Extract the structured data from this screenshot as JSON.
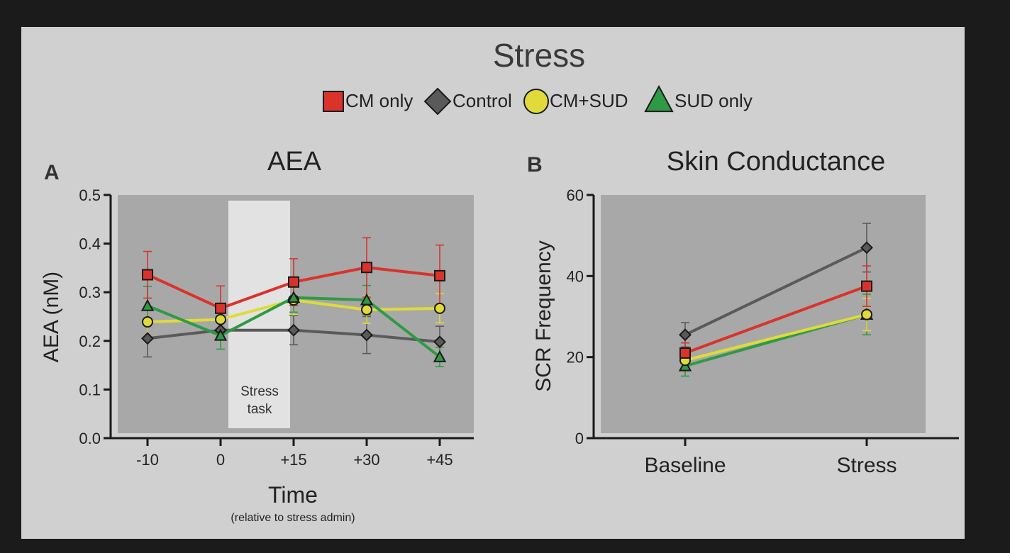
{
  "figure": {
    "title": "Stress",
    "legend": [
      {
        "name": "CM only",
        "color": "#d9332b",
        "marker": "square"
      },
      {
        "name": "Control",
        "color": "#5a5a5a",
        "marker": "diamond"
      },
      {
        "name": "CM+SUD",
        "color": "#e0da3a",
        "marker": "circle"
      },
      {
        "name": "SUD only",
        "color": "#2f9a45",
        "marker": "triangle"
      }
    ],
    "colors": {
      "frame": "#1b1b1b",
      "panel_bg": "#d0d0d0",
      "plot_bg": "#a8a8a8",
      "stress_band": "#e2e2e2",
      "axis": "#1a1a1a",
      "text": "#333333"
    }
  },
  "chart_data": [
    {
      "type": "line",
      "panel_letter": "A",
      "title": "AEA",
      "ylabel": "AEA (nM)",
      "xlabel": "Time",
      "xlabel_sub": "(relative to stress admin)",
      "categories": [
        "-10",
        "0",
        "+15",
        "+30",
        "+45"
      ],
      "ylim": [
        0.0,
        0.5
      ],
      "yticks": [
        "0.0",
        "0.1",
        "0.2",
        "0.3",
        "0.4",
        "0.5"
      ],
      "annotation": {
        "line1": "Stress",
        "line2": "task"
      },
      "grid": false,
      "series": [
        {
          "name": "CM only",
          "values": [
            0.336,
            0.267,
            0.321,
            0.351,
            0.334
          ],
          "errors": [
            0.048,
            0.046,
            0.048,
            0.061,
            0.063
          ]
        },
        {
          "name": "Control",
          "values": [
            0.205,
            0.222,
            0.222,
            0.212,
            0.198
          ],
          "errors": [
            0.038,
            0.02,
            0.03,
            0.038,
            0.032
          ]
        },
        {
          "name": "CM+SUD",
          "values": [
            0.239,
            0.244,
            0.284,
            0.264,
            0.267
          ],
          "errors": [
            0.03,
            0.025,
            0.03,
            0.028,
            0.03
          ]
        },
        {
          "name": "SUD only",
          "values": [
            0.272,
            0.211,
            0.289,
            0.284,
            0.167
          ],
          "errors": [
            0.04,
            0.028,
            0.03,
            0.03,
            0.02
          ]
        }
      ]
    },
    {
      "type": "line",
      "panel_letter": "B",
      "title": "Skin Conductance",
      "ylabel": "SCR Frequency",
      "xlabel": "",
      "categories": [
        "Baseline",
        "Stress"
      ],
      "ylim": [
        0,
        60
      ],
      "yticks": [
        "0",
        "20",
        "40",
        "60"
      ],
      "grid": false,
      "series": [
        {
          "name": "CM only",
          "values": [
            21,
            37.5
          ],
          "errors": [
            2.5,
            5
          ]
        },
        {
          "name": "Control",
          "values": [
            25.5,
            47
          ],
          "errors": [
            3,
            6
          ]
        },
        {
          "name": "CM+SUD",
          "values": [
            19.2,
            30.5
          ],
          "errors": [
            2.5,
            4
          ]
        },
        {
          "name": "SUD only",
          "values": [
            17.8,
            30.5
          ],
          "errors": [
            2.5,
            5
          ]
        }
      ]
    }
  ]
}
